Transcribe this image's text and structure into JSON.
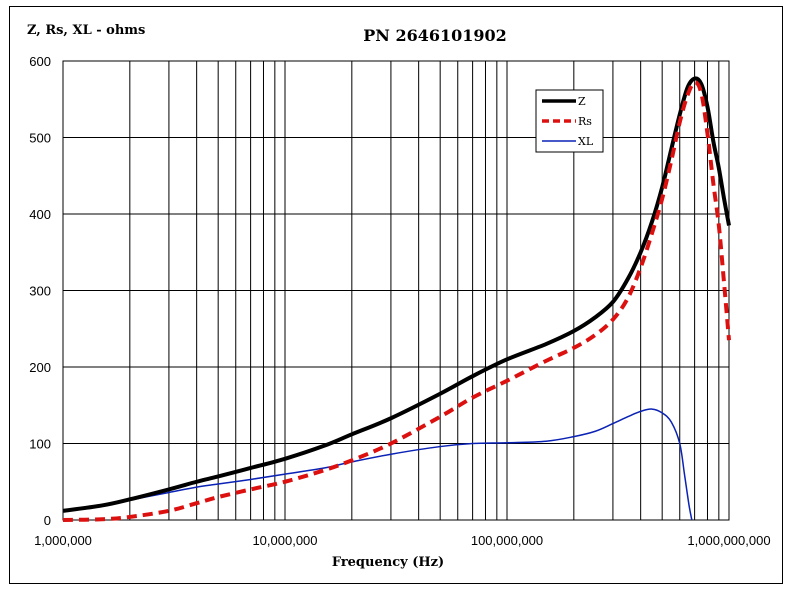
{
  "chart_data": {
    "type": "line",
    "title": "PN 2646101902",
    "ylabel": "Z, Rs, XL - ohms",
    "xlabel": "Frequency (Hz)",
    "x_scale": "log",
    "xlim": [
      1000000,
      1000000000
    ],
    "ylim": [
      0,
      600
    ],
    "grid": true,
    "legend_position": "top-right",
    "y_ticks": [
      0,
      100,
      200,
      300,
      400,
      500,
      600
    ],
    "y_tick_labels": [
      "0",
      "100",
      "200",
      "300",
      "400",
      "500",
      "600"
    ],
    "x_ticks": [
      1000000,
      10000000,
      100000000,
      1000000000
    ],
    "x_tick_labels": [
      "1,000,000",
      "10,000,000",
      "100,000,000",
      "1,000,000,000"
    ],
    "series": [
      {
        "name": "Z",
        "color": "#000000",
        "style": "solid-thick",
        "points": [
          [
            1000000,
            12
          ],
          [
            1500000,
            19
          ],
          [
            2000000,
            27
          ],
          [
            3000000,
            40
          ],
          [
            4000000,
            50
          ],
          [
            5000000,
            57
          ],
          [
            7000000,
            68
          ],
          [
            10000000,
            80
          ],
          [
            15000000,
            97
          ],
          [
            20000000,
            112
          ],
          [
            30000000,
            133
          ],
          [
            50000000,
            165
          ],
          [
            70000000,
            188
          ],
          [
            100000000,
            210
          ],
          [
            150000000,
            230
          ],
          [
            200000000,
            247
          ],
          [
            250000000,
            265
          ],
          [
            300000000,
            285
          ],
          [
            350000000,
            315
          ],
          [
            400000000,
            350
          ],
          [
            450000000,
            390
          ],
          [
            500000000,
            435
          ],
          [
            550000000,
            485
          ],
          [
            600000000,
            530
          ],
          [
            650000000,
            565
          ],
          [
            700000000,
            577
          ],
          [
            750000000,
            570
          ],
          [
            800000000,
            540
          ],
          [
            850000000,
            495
          ],
          [
            900000000,
            460
          ],
          [
            950000000,
            420
          ],
          [
            1000000000,
            385
          ]
        ]
      },
      {
        "name": "Rs",
        "color": "#dd1010",
        "style": "dashed",
        "points": [
          [
            1000000,
            0
          ],
          [
            1500000,
            1
          ],
          [
            2000000,
            4
          ],
          [
            3000000,
            12
          ],
          [
            4000000,
            22
          ],
          [
            5000000,
            30
          ],
          [
            7000000,
            40
          ],
          [
            10000000,
            50
          ],
          [
            15000000,
            65
          ],
          [
            20000000,
            78
          ],
          [
            30000000,
            100
          ],
          [
            50000000,
            135
          ],
          [
            70000000,
            160
          ],
          [
            100000000,
            182
          ],
          [
            150000000,
            208
          ],
          [
            200000000,
            225
          ],
          [
            250000000,
            242
          ],
          [
            300000000,
            262
          ],
          [
            350000000,
            290
          ],
          [
            400000000,
            330
          ],
          [
            450000000,
            375
          ],
          [
            500000000,
            420
          ],
          [
            550000000,
            470
          ],
          [
            600000000,
            520
          ],
          [
            650000000,
            555
          ],
          [
            700000000,
            572
          ],
          [
            750000000,
            558
          ],
          [
            800000000,
            505
          ],
          [
            850000000,
            440
          ],
          [
            900000000,
            385
          ],
          [
            950000000,
            310
          ],
          [
            1000000000,
            235
          ]
        ]
      },
      {
        "name": "XL",
        "color": "#0a22b5",
        "style": "solid-thin",
        "points": [
          [
            1000000,
            11
          ],
          [
            1500000,
            18
          ],
          [
            2000000,
            26
          ],
          [
            3000000,
            36
          ],
          [
            4000000,
            43
          ],
          [
            5000000,
            47
          ],
          [
            7000000,
            53
          ],
          [
            10000000,
            60
          ],
          [
            15000000,
            68
          ],
          [
            20000000,
            76
          ],
          [
            30000000,
            86
          ],
          [
            50000000,
            96
          ],
          [
            70000000,
            100
          ],
          [
            100000000,
            101
          ],
          [
            150000000,
            103
          ],
          [
            200000000,
            109
          ],
          [
            250000000,
            116
          ],
          [
            300000000,
            126
          ],
          [
            350000000,
            135
          ],
          [
            400000000,
            142
          ],
          [
            450000000,
            145
          ],
          [
            500000000,
            140
          ],
          [
            550000000,
            128
          ],
          [
            600000000,
            100
          ],
          [
            630000000,
            60
          ],
          [
            660000000,
            20
          ],
          [
            680000000,
            0
          ]
        ]
      }
    ]
  }
}
